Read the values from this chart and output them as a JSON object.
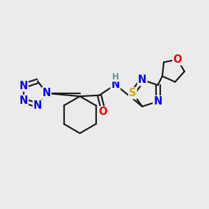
{
  "bg_color": "#ebebeb",
  "bond_color": "#1a1a1a",
  "bond_width": 1.6,
  "atom_colors": {
    "N": "#0000ee",
    "O": "#ee0000",
    "S": "#ccaa00",
    "C": "#1a1a1a",
    "H": "#5a9090"
  },
  "font_size_atom": 10.5,
  "font_size_small": 8.5,
  "xlim": [
    0,
    10
  ],
  "ylim": [
    0,
    10
  ]
}
